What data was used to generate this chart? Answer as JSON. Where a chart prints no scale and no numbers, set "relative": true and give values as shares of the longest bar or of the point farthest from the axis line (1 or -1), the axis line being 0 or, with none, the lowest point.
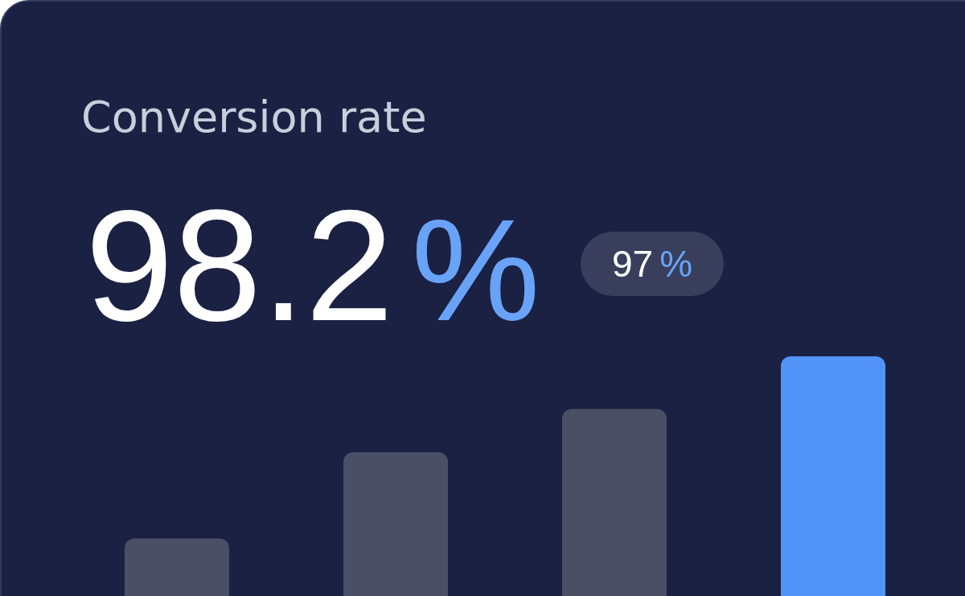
{
  "chart_data": {
    "type": "bar",
    "title": "Conversion rate",
    "annotations": [
      "98.2%",
      "97%"
    ],
    "categories": [
      null,
      null,
      null,
      null
    ],
    "values": [
      0.24,
      0.6,
      0.78,
      1
    ],
    "colors": [
      "#4a4f66",
      "#4a4f66",
      "#4a4f66",
      "#5293f7"
    ],
    "relative": true
  }
}
